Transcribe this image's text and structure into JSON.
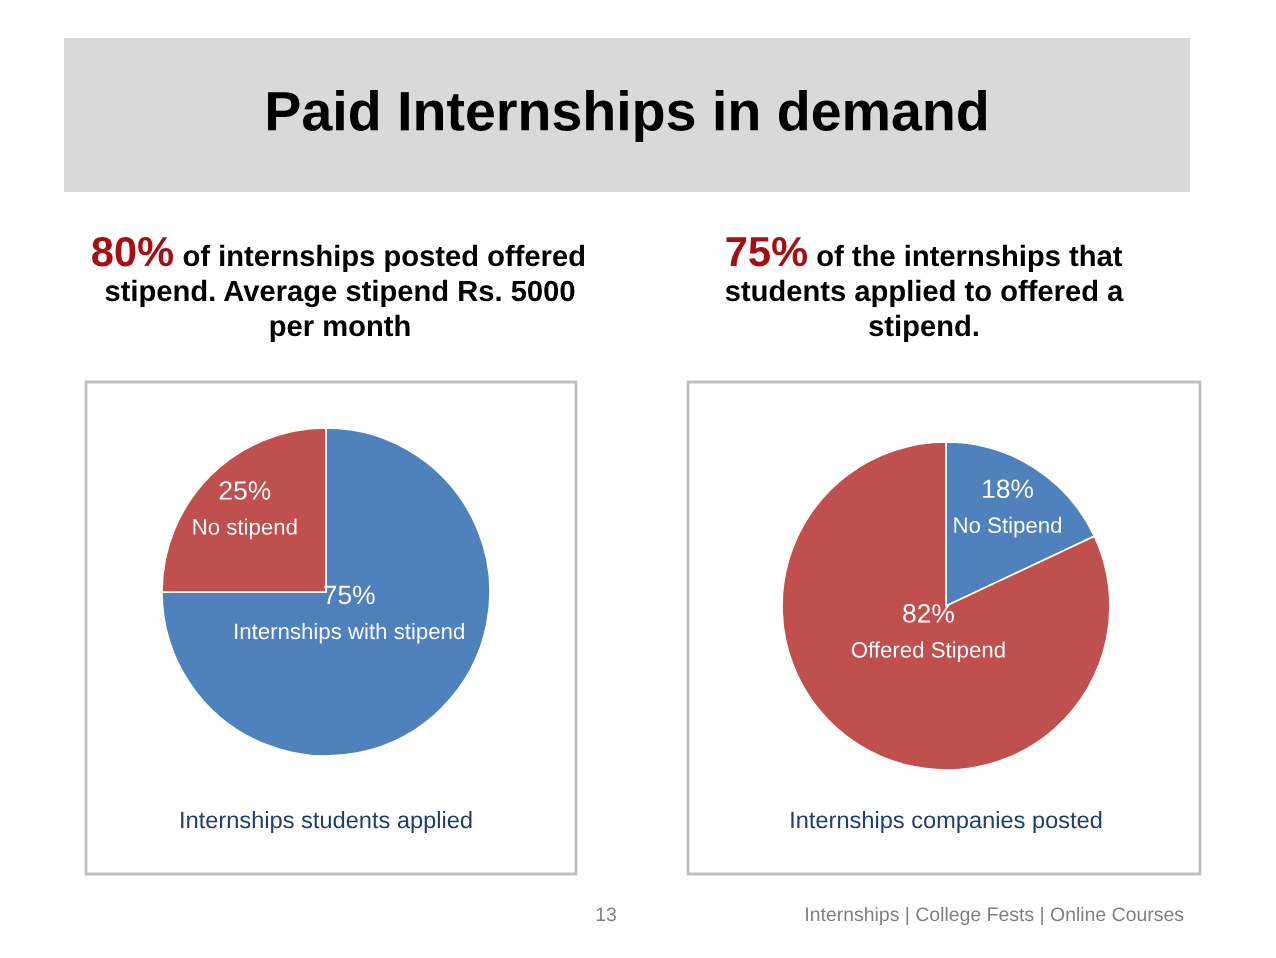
{
  "chart_data": [
    {
      "type": "pie",
      "title": "Paid Internships in demand",
      "subtitle": "80% of internships posted offered stipend. Average stipend Rs. 5000 per month",
      "categories": [
        "Internships with stipend",
        "No stipend"
      ],
      "values": [
        75,
        25
      ],
      "value_labels": [
        "75%",
        "25%"
      ],
      "colors": [
        "#4f81bd",
        "#c0504d"
      ],
      "annotations": [
        "Internships students applied"
      ]
    },
    {
      "type": "pie",
      "subtitle": "75% of the internships that students applied to offered a stipend.",
      "categories": [
        "No Stipend",
        "Offered Stipend"
      ],
      "values": [
        18,
        82
      ],
      "value_labels": [
        "18%",
        "82%"
      ],
      "colors": [
        "#4f81bd",
        "#c0504d"
      ],
      "annotations": [
        "Internships companies posted",
        "13",
        "Internships | College Fests | Online Courses"
      ]
    }
  ]
}
